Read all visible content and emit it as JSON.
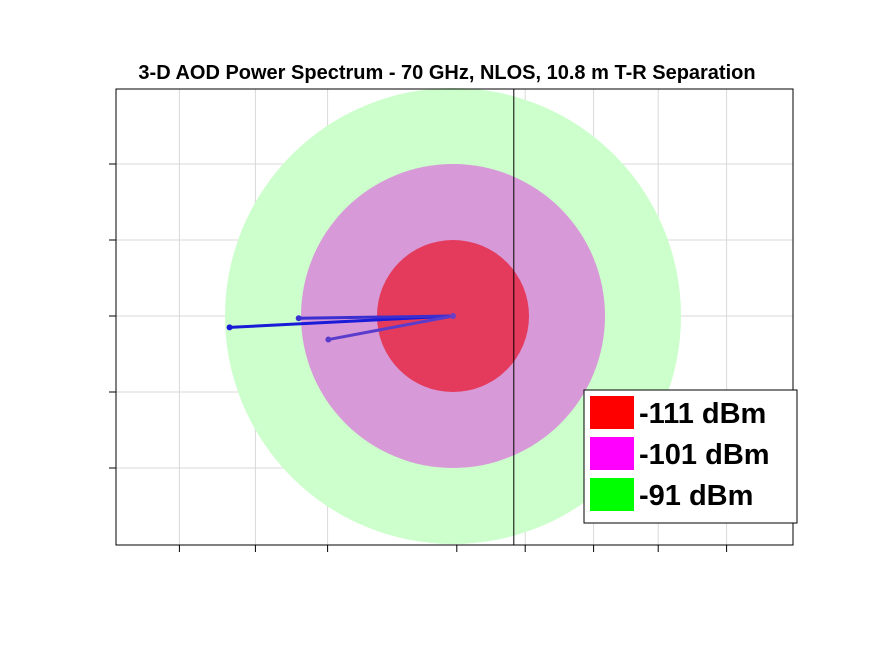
{
  "chart_data": {
    "type": "polar-power-spectrum",
    "title": "3-D AOD Power Spectrum - 70 GHz, NLOS, 10.8 m T-R Separation",
    "grid": true,
    "center": {
      "x": 0,
      "y": 0
    },
    "rings": [
      {
        "label": "-91 dBm",
        "radius": 3,
        "color": "#ccffcc"
      },
      {
        "label": "-101 dBm",
        "radius": 2,
        "color": "#d799d7"
      },
      {
        "label": "-111 dBm",
        "radius": 1,
        "color": "#e43a5c"
      }
    ],
    "legend": {
      "placement": "bottom-right",
      "items": [
        {
          "label": "-111 dBm",
          "color": "#ff0000"
        },
        {
          "label": "-101 dBm",
          "color": "#ff00ff"
        },
        {
          "label": "-91 dBm",
          "color": "#00ff00"
        }
      ]
    },
    "rays": [
      {
        "x": -2.94,
        "y": -0.15,
        "color": "#1a1ad9"
      },
      {
        "x": -2.03,
        "y": -0.03,
        "color": "#3b2fd0"
      },
      {
        "x": -1.64,
        "y": -0.31,
        "color": "#5a3ccc"
      }
    ],
    "xlim": [
      -4.45,
      4.45
    ],
    "ylim": [
      -3.0,
      3.0
    ],
    "x_ticks": [
      -3.6,
      -2.6,
      -1.65,
      0.05,
      0.95,
      1.85,
      2.7,
      3.6
    ],
    "y_ticks": [
      -2.0,
      -1.0,
      0,
      1.0,
      2.0
    ],
    "vertical_line_x": 0.8
  }
}
